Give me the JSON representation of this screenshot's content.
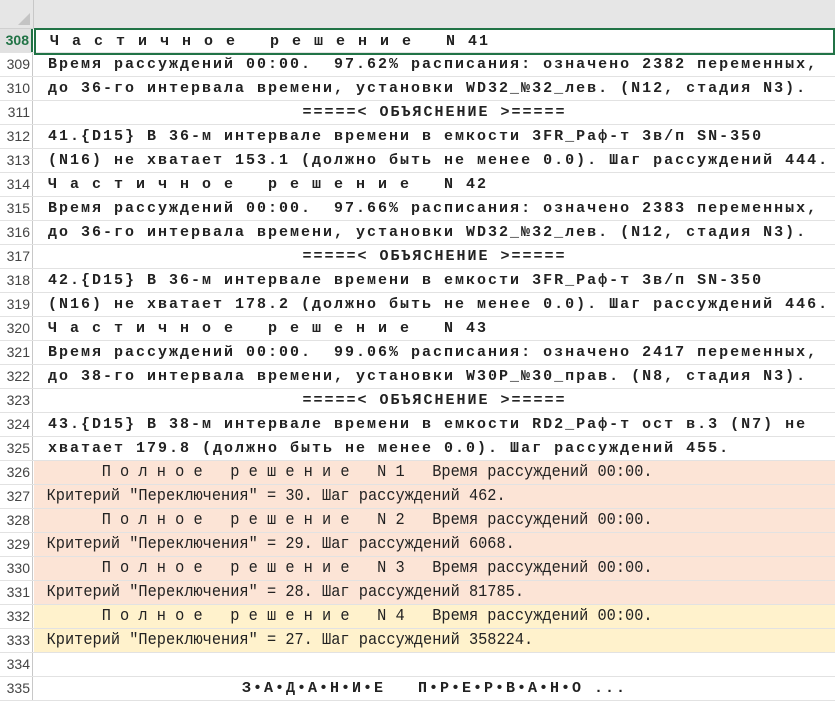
{
  "rows": [
    {
      "n": "308",
      "text": "Ч а с т и ч н о е   р е ш е н и е   N 41",
      "style": "selbox"
    },
    {
      "n": "309",
      "text": "Время рассуждений 00:00.  97.62% расписания: означено 2382 переменных,"
    },
    {
      "n": "310",
      "text": "до 36-го интервала времени, установки WD32_№32_лев. (N12, стадия N3)."
    },
    {
      "n": "311",
      "text": "=====< ОБЪЯСНЕНИЕ >=====",
      "style": "center"
    },
    {
      "n": "312",
      "text": "41.{D15} В 36-м интервале времени в емкости 3FR_Раф-т 3в/п SN-350"
    },
    {
      "n": "313",
      "text": "(N16) не хватает 153.1 (должно быть не менее 0.0). Шаг рассуждений 444."
    },
    {
      "n": "314",
      "text": "Ч а с т и ч н о е   р е ш е н и е   N 42"
    },
    {
      "n": "315",
      "text": "Время рассуждений 00:00.  97.66% расписания: означено 2383 переменных,"
    },
    {
      "n": "316",
      "text": "до 36-го интервала времени, установки WD32_№32_лев. (N12, стадия N3)."
    },
    {
      "n": "317",
      "text": "=====< ОБЪЯСНЕНИЕ >=====",
      "style": "center"
    },
    {
      "n": "318",
      "text": "42.{D15} В 36-м интервале времени в емкости 3FR_Раф-т 3в/п SN-350"
    },
    {
      "n": "319",
      "text": "(N16) не хватает 178.2 (должно быть не менее 0.0). Шаг рассуждений 446."
    },
    {
      "n": "320",
      "text": "Ч а с т и ч н о е   р е ш е н и е   N 43"
    },
    {
      "n": "321",
      "text": "Время рассуждений 00:00.  99.06% расписания: означено 2417 переменных,"
    },
    {
      "n": "322",
      "text": "до 38-го интервала времени, установки W30P_№30_прав. (N8, стадия N3)."
    },
    {
      "n": "323",
      "text": "=====< ОБЪЯСНЕНИЕ >=====",
      "style": "center"
    },
    {
      "n": "324",
      "text": "43.{D15} В 38-м интервале времени в емкости RD2_Раф-т ост в.3 (N7) не"
    },
    {
      "n": "325",
      "text": "хватает 179.8 (должно быть не менее 0.0). Шаг рассуждений 455."
    },
    {
      "n": "326",
      "text": "      П о л н о е   р е ш е н и е   N 1   Время рассуждений 00:00.",
      "style": "pink narrow"
    },
    {
      "n": "327",
      "text": "Критерий \"Переключения\" = 30. Шаг рассуждений 462.",
      "style": "pink narrow"
    },
    {
      "n": "328",
      "text": "      П о л н о е   р е ш е н и е   N 2   Время рассуждений 00:00.",
      "style": "pink narrow"
    },
    {
      "n": "329",
      "text": "Критерий \"Переключения\" = 29. Шаг рассуждений 6068.",
      "style": "pink narrow"
    },
    {
      "n": "330",
      "text": "      П о л н о е   р е ш е н и е   N 3   Время рассуждений 00:00.",
      "style": "pink narrow"
    },
    {
      "n": "331",
      "text": "Критерий \"Переключения\" = 28. Шаг рассуждений 81785.",
      "style": "pink narrow"
    },
    {
      "n": "332",
      "text": "      П о л н о е   р е ш е н и е   N 4   Время рассуждений 00:00.",
      "style": "yellow narrow"
    },
    {
      "n": "333",
      "text": "Критерий \"Переключения\" = 27. Шаг рассуждений 358224.",
      "style": "yellow narrow"
    },
    {
      "n": "334",
      "text": ""
    },
    {
      "n": "335",
      "text": "З•А•Д•А•Н•И•Е   П•Р•Е•Р•В•А•Н•О ...",
      "style": "center"
    }
  ],
  "selected_row": "308",
  "colors": {
    "selection": "#217346",
    "pink": "#fce4d6",
    "yellow": "#fff2cc"
  }
}
